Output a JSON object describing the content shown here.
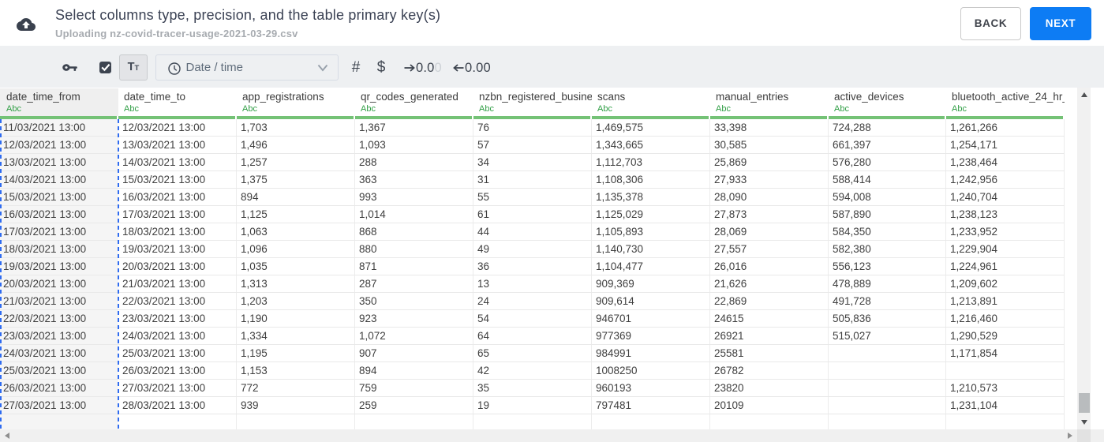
{
  "header": {
    "title": "Select columns type, precision, and the table primary key(s)",
    "subtitle": "Uploading nz-covid-tracer-usage-2021-03-29.csv",
    "back_label": "BACK",
    "next_label": "NEXT"
  },
  "toolbar": {
    "primary_key_checkbox_checked": true,
    "text_format_large": "T",
    "text_format_small": "T",
    "type_select_value": "Date / time",
    "number_glyph": "#",
    "currency_glyph": "$",
    "increase_precision_label": "0.0",
    "increase_precision_muted": "0",
    "decrease_precision_label": "0.00"
  },
  "table": {
    "selected_column_index": 0,
    "type_label": "Abc",
    "columns": [
      "date_time_from",
      "date_time_to",
      "app_registrations",
      "qr_codes_generated",
      "nzbn_registered_busine",
      "scans",
      "manual_entries",
      "active_devices",
      "bluetooth_active_24_hr_"
    ],
    "rows": [
      [
        "11/03/2021 13:00",
        "12/03/2021 13:00",
        "1,703",
        "1,367",
        "76",
        "1,469,575",
        "33,398",
        "724,288",
        "1,261,266"
      ],
      [
        "12/03/2021 13:00",
        "13/03/2021 13:00",
        "1,496",
        "1,093",
        "57",
        "1,343,665",
        "30,585",
        "661,397",
        "1,254,171"
      ],
      [
        "13/03/2021 13:00",
        "14/03/2021 13:00",
        "1,257",
        "288",
        "34",
        "1,112,703",
        "25,869",
        "576,280",
        "1,238,464"
      ],
      [
        "14/03/2021 13:00",
        "15/03/2021 13:00",
        "1,375",
        "363",
        "31",
        "1,108,306",
        "27,933",
        "588,414",
        "1,242,956"
      ],
      [
        "15/03/2021 13:00",
        "16/03/2021 13:00",
        "894",
        "993",
        "55",
        "1,135,378",
        "28,090",
        "594,008",
        "1,240,704"
      ],
      [
        "16/03/2021 13:00",
        "17/03/2021 13:00",
        "1,125",
        "1,014",
        "61",
        "1,125,029",
        "27,873",
        "587,890",
        "1,238,123"
      ],
      [
        "17/03/2021 13:00",
        "18/03/2021 13:00",
        "1,063",
        "868",
        "44",
        "1,105,893",
        "28,069",
        "584,350",
        "1,233,952"
      ],
      [
        "18/03/2021 13:00",
        "19/03/2021 13:00",
        "1,096",
        "880",
        "49",
        "1,140,730",
        "27,557",
        "582,380",
        "1,229,904"
      ],
      [
        "19/03/2021 13:00",
        "20/03/2021 13:00",
        "1,035",
        "871",
        "36",
        "1,104,477",
        "26,016",
        "556,123",
        "1,224,961"
      ],
      [
        "20/03/2021 13:00",
        "21/03/2021 13:00",
        "1,313",
        "287",
        "13",
        "909,369",
        "21,626",
        "478,889",
        "1,209,602"
      ],
      [
        "21/03/2021 13:00",
        "22/03/2021 13:00",
        "1,203",
        "350",
        "24",
        "909,614",
        "22,869",
        "491,728",
        "1,213,891"
      ],
      [
        "22/03/2021 13:00",
        "23/03/2021 13:00",
        "1,190",
        "923",
        "54",
        "946701",
        "24615",
        "505,836",
        "1,216,460"
      ],
      [
        "23/03/2021 13:00",
        "24/03/2021 13:00",
        "1,334",
        "1,072",
        "64",
        "977369",
        "26921",
        "515,027",
        "1,290,529"
      ],
      [
        "24/03/2021 13:00",
        "25/03/2021 13:00",
        "1,195",
        "907",
        "65",
        "984991",
        "25581",
        "",
        "1,171,854"
      ],
      [
        "25/03/2021 13:00",
        "26/03/2021 13:00",
        "1,153",
        "894",
        "42",
        "1008250",
        "26782",
        "",
        ""
      ],
      [
        "26/03/2021 13:00",
        "27/03/2021 13:00",
        "772",
        "759",
        "35",
        "960193",
        "23820",
        "",
        "1,210,573"
      ],
      [
        "27/03/2021 13:00",
        "28/03/2021 13:00",
        "939",
        "259",
        "19",
        "797481",
        "20109",
        "",
        "1,231,104"
      ]
    ]
  },
  "colors": {
    "accent_blue": "#0d7cf4",
    "selection_blue": "#2e6bf0",
    "type_green": "#2f9e44",
    "header_underline_green": "#74c276",
    "toolbar_bg": "#eef0f2",
    "selected_column_bg": "#f5f5f5",
    "dark_icon": "#3d4450"
  }
}
